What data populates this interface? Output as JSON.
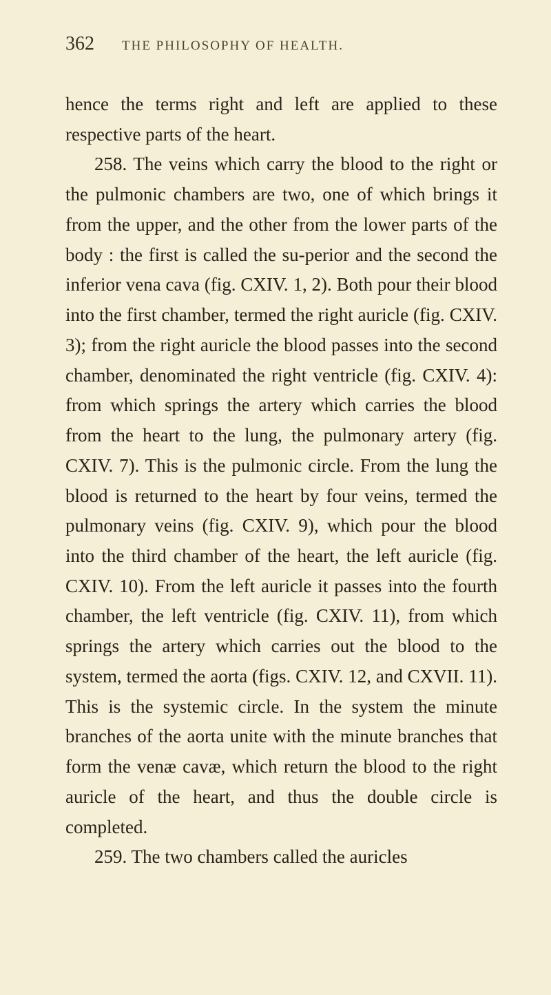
{
  "page": {
    "number": "362",
    "running_title": "THE PHILOSOPHY OF HEALTH.",
    "background_color": "#f5efd8",
    "text_color": "#2a2218",
    "header_color": "#4a4030",
    "body_fontsize": 27,
    "header_fontsize": 19,
    "pagenum_fontsize": 28,
    "line_height": 1.62
  },
  "paragraphs": {
    "p1": "hence the terms right and left are applied to these respective parts of the heart.",
    "p2": "258. The veins which carry the blood to the right or the pulmonic chambers are two, one of which brings it from the upper, and the other from the lower parts of the body : the first is called the su-perior and the second the inferior vena cava (fig. CXIV. 1, 2). Both pour their blood into the first chamber, termed the right auricle (fig. CXIV. 3); from the right auricle the blood passes into the second chamber, denominated the right ventricle (fig. CXIV. 4): from which springs the artery which carries the blood from the heart to the lung, the pulmonary artery (fig. CXIV. 7). This is the pulmonic circle. From the lung the blood is returned to the heart by four veins, termed the pulmonary veins (fig. CXIV. 9), which pour the blood into the third chamber of the heart, the left auricle (fig. CXIV. 10). From the left auricle it passes into the fourth chamber, the left ventricle (fig. CXIV. 11), from which springs the artery which carries out the blood to the system, termed the aorta (figs. CXIV. 12, and CXVII. 11). This is the systemic circle. In the system the minute branches of the aorta unite with the minute branches that form the venæ cavæ, which return the blood to the right auricle of the heart, and thus the double circle is completed.",
    "p3": "259. The two chambers called the auricles"
  }
}
